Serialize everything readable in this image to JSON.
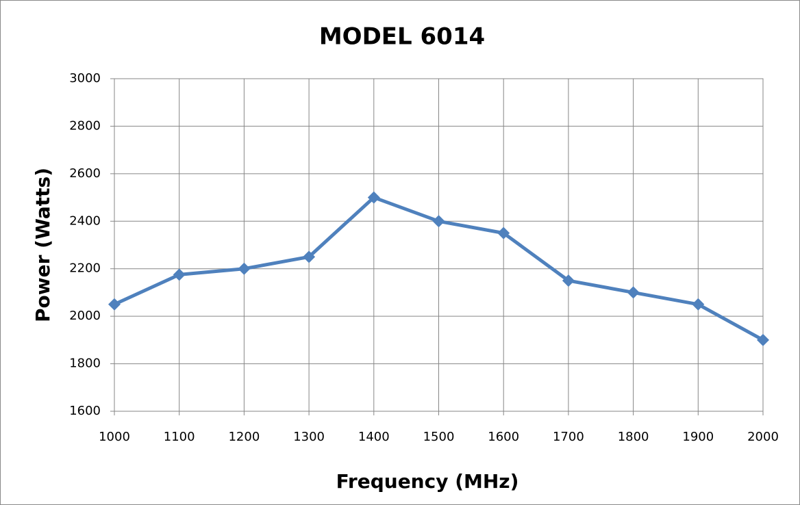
{
  "chart_data": {
    "type": "line",
    "title": "MODEL 6014",
    "x_label": "Frequency (MHz)",
    "y_label": "Power (Watts)",
    "x": [
      1000,
      1100,
      1200,
      1300,
      1400,
      1500,
      1600,
      1700,
      1800,
      1900,
      2000
    ],
    "series": [
      {
        "name": "Power",
        "color": "#4f81bd",
        "values": [
          2050,
          2175,
          2200,
          2250,
          2500,
          2400,
          2350,
          2150,
          2100,
          2050,
          1900
        ]
      }
    ],
    "xlim": [
      1000,
      2000
    ],
    "xticks": [
      1000,
      1100,
      1200,
      1300,
      1400,
      1500,
      1600,
      1700,
      1800,
      1900,
      2000
    ],
    "ylim": [
      1600,
      3000
    ],
    "yticks": [
      1600,
      1800,
      2000,
      2200,
      2400,
      2600,
      2800,
      3000
    ],
    "grid": true,
    "marker": "diamond"
  }
}
